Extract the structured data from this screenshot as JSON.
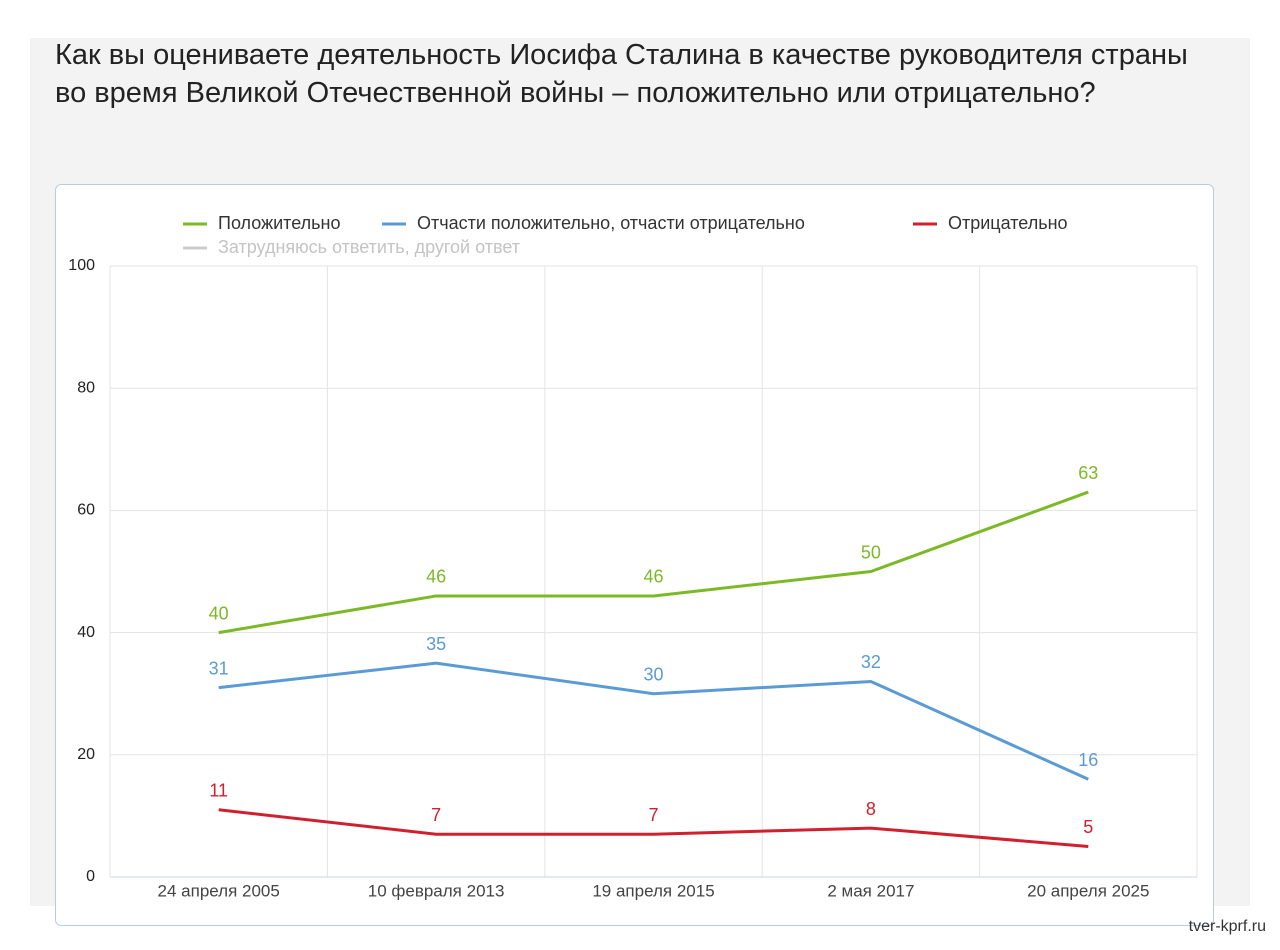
{
  "title": "Как вы оцениваете деятельность Иосифа Сталина в качестве руководителя страны во время Великой Отечественной войны – положительно или отрицательно?",
  "watermark": "tver-kprf.ru",
  "chart_data": {
    "type": "line",
    "categories": [
      "24 апреля 2005",
      "10 февраля 2013",
      "19 апреля 2015",
      "2 мая 2017",
      "20 апреля 2025"
    ],
    "series": [
      {
        "name": "Положительно",
        "color": "#7cb926",
        "values": [
          40,
          46,
          46,
          50,
          63
        ]
      },
      {
        "name": "Отчасти положительно, отчасти отрицательно",
        "color": "#5b9bd5",
        "values": [
          31,
          35,
          30,
          32,
          16
        ]
      },
      {
        "name": "Отрицательно",
        "color": "#d0202e",
        "values": [
          11,
          7,
          7,
          8,
          5
        ]
      },
      {
        "name": "Затрудняюсь ответить, другой ответ",
        "color": "#cccccc",
        "values": [
          null,
          null,
          null,
          null,
          null
        ]
      }
    ],
    "ylim": [
      0,
      100
    ],
    "yticks": [
      0,
      20,
      40,
      60,
      80,
      100
    ],
    "grid": true
  }
}
